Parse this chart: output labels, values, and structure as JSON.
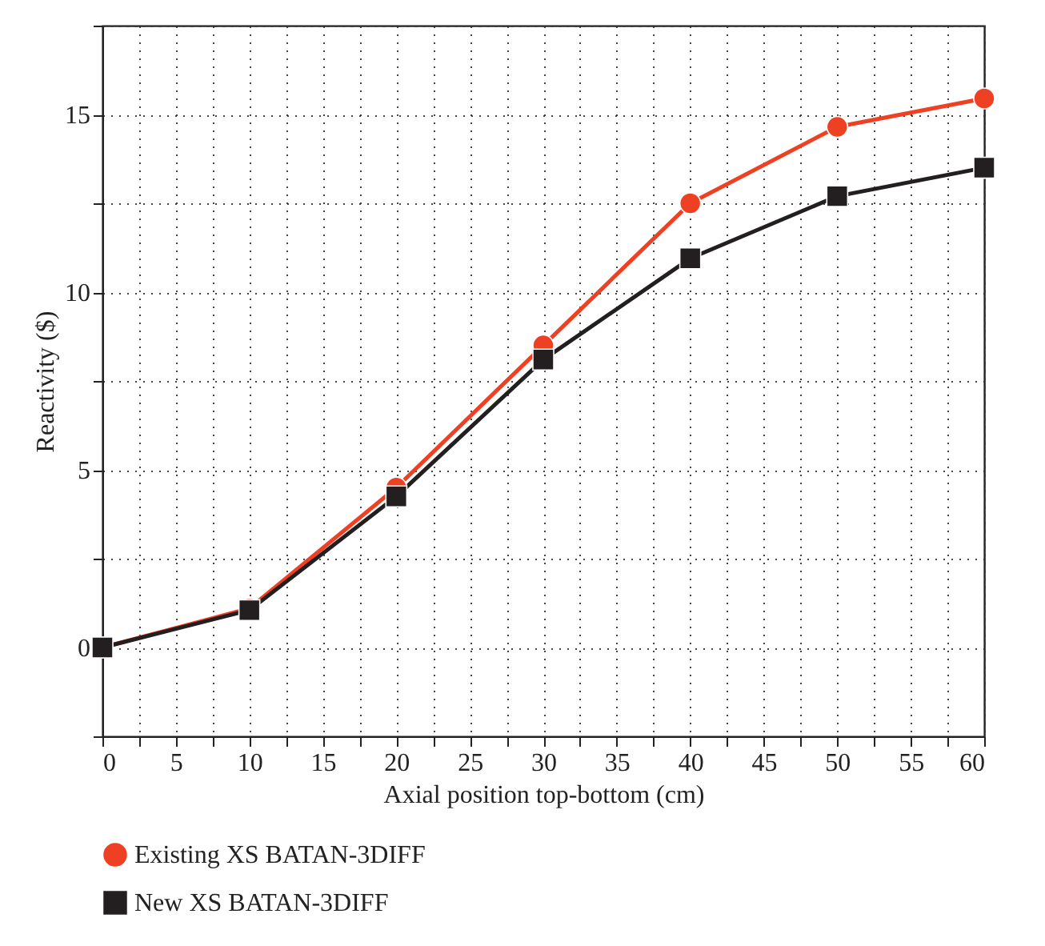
{
  "chart_data": {
    "type": "line",
    "xlabel": "Axial position top-bottom (cm)",
    "ylabel": "Reactivity ($)",
    "x": [
      0,
      10,
      20,
      30,
      40,
      50,
      60
    ],
    "series": [
      {
        "name": "Existing XS BATAN-3DIFF",
        "color": "#ee4023",
        "marker": "circle",
        "values": [
          0,
          1.1,
          4.5,
          8.5,
          12.5,
          14.65,
          15.45
        ]
      },
      {
        "name": "New XS BATAN-3DIFF",
        "color": "#231f20",
        "marker": "square",
        "values": [
          0,
          1.05,
          4.25,
          8.1,
          10.95,
          12.7,
          13.5
        ]
      }
    ],
    "xlim": [
      0,
      60
    ],
    "ylim": [
      -2.5,
      17.5
    ],
    "xticks": [
      0,
      {
        "value": 2.5,
        "label": null
      },
      5,
      {
        "value": 7.5,
        "label": null
      },
      10,
      {
        "value": 12.5,
        "label": null
      },
      15,
      {
        "value": 17.5,
        "label": null
      },
      20,
      {
        "value": 22.5,
        "label": null
      },
      25,
      {
        "value": 27.5,
        "label": null
      },
      30,
      {
        "value": 32.5,
        "label": null
      },
      35,
      {
        "value": 37.5,
        "label": null
      },
      40,
      {
        "value": 42.5,
        "label": null
      },
      45,
      {
        "value": 47.5,
        "label": null
      },
      50,
      {
        "value": 52.5,
        "label": null
      },
      55,
      {
        "value": 57.5,
        "label": null
      },
      60
    ],
    "yticks": [
      {
        "value": -2.5,
        "label": null
      },
      0,
      {
        "value": 2.5,
        "label": null
      },
      5,
      {
        "value": 7.5,
        "label": null
      },
      10,
      {
        "value": 12.5,
        "label": null
      },
      15,
      {
        "value": 17.5,
        "label": null
      }
    ],
    "grid": true,
    "legend": "bottom left",
    "line_style": "solid"
  }
}
